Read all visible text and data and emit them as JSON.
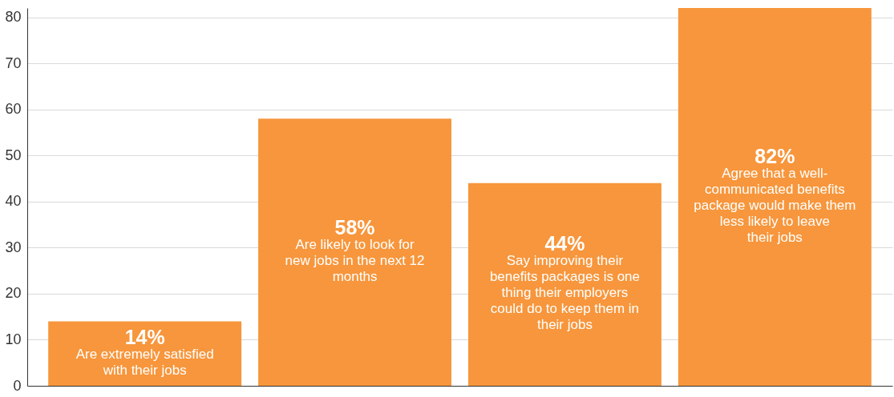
{
  "chart_data": {
    "type": "bar",
    "categories": [
      "Are extremely satisfied with their jobs",
      "Are likely to look for new jobs in the next 12 months",
      "Say improving their benefits packages is one thing their employers could do to keep them in their jobs",
      "Agree that a well-communicated benefits package would make them less likely to leave their jobs"
    ],
    "values": [
      14,
      58,
      44,
      82
    ],
    "value_labels": [
      "14%",
      "58%",
      "44%",
      "82%"
    ],
    "color": "#f7963c",
    "ylim": [
      0,
      82
    ],
    "yticks": [
      0,
      10,
      20,
      30,
      40,
      50,
      60,
      70,
      80
    ],
    "grid": "y",
    "tick_labels": "y"
  }
}
